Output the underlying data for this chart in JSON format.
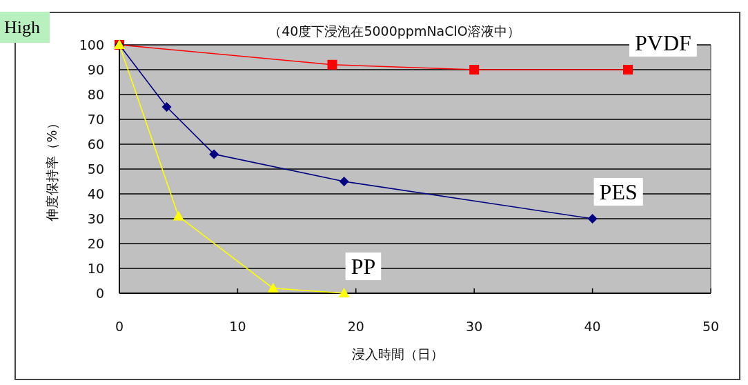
{
  "chart_data": {
    "type": "line",
    "title": "（40度下浸泡在5000ppmNaClO溶液中）",
    "xlabel": "浸入時間（日）",
    "ylabel": "伸度保持率（%）",
    "annotations": [
      "High"
    ],
    "series": [
      {
        "name": "PVDF",
        "color": "#ff0000",
        "marker": "square",
        "x": [
          0,
          18,
          30,
          43
        ],
        "values": [
          100,
          92,
          90,
          90
        ]
      },
      {
        "name": "PES",
        "color": "#000080",
        "marker": "diamond",
        "x": [
          0,
          4,
          8,
          19,
          40
        ],
        "values": [
          100,
          75,
          56,
          45,
          30
        ]
      },
      {
        "name": "PP",
        "color": "#ffff00",
        "marker": "triangle",
        "x": [
          0,
          5,
          13,
          19
        ],
        "values": [
          100,
          31,
          2,
          0
        ]
      }
    ],
    "xlim": [
      0,
      50
    ],
    "xticks": [
      0,
      10,
      20,
      30,
      40,
      50
    ],
    "ylim": [
      0,
      100
    ],
    "yticks": [
      0,
      10,
      20,
      30,
      40,
      50,
      60,
      70,
      80,
      90,
      100
    ],
    "grid": "y"
  }
}
